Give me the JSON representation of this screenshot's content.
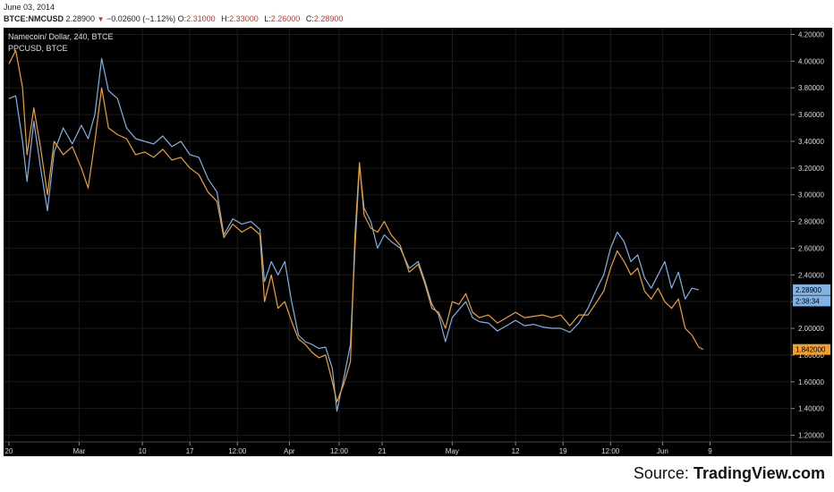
{
  "header": {
    "date": "June 03, 2014",
    "symbol": "BTCE:NMCUSD",
    "last": "2.28900",
    "change": "−0.02600 (−1.12%)",
    "open_label": "O:",
    "open": "2.31000",
    "high_label": "H:",
    "high": "2.33000",
    "low_label": "L:",
    "low": "2.26000",
    "close_label": "C:",
    "close": "2.28900"
  },
  "source": {
    "label": "Source:",
    "brand": "TradingView.com"
  },
  "colors": {
    "background": "#000000",
    "nmc": "#7fb2e5",
    "ppc": "#f0a030",
    "axis": "#d8d8d8",
    "grid": "#1a1a1a"
  },
  "chart_data": {
    "type": "line",
    "legend": [
      "Namecoin/ Dollar, 240, BTCE",
      "PPCUSD, BTCE"
    ],
    "x_ticks": [
      "20",
      "Mar",
      "10",
      "17",
      "12:00",
      "Apr",
      "12:00",
      "21",
      "May",
      "12",
      "19",
      "12:00",
      "Jun",
      "9"
    ],
    "x_tick_index": [
      0,
      31,
      59,
      80,
      101,
      124,
      146,
      165,
      196,
      224,
      245,
      266,
      289,
      310
    ],
    "y_ticks": [
      "4.20000",
      "4.00000",
      "3.80000",
      "3.60000",
      "3.40000",
      "3.20000",
      "3.00000",
      "2.80000",
      "2.60000",
      "2.40000",
      "2.20000",
      "2.00000",
      "1.80000",
      "1.60000",
      "1.40000",
      "1.20000"
    ],
    "ylim": [
      1.15,
      4.25
    ],
    "x_max": 330,
    "price_tags": [
      {
        "series": 0,
        "text": "2.28900",
        "value": 2.289
      },
      {
        "series": 0,
        "text": "2:38:34",
        "value": 2.205
      },
      {
        "series": 1,
        "text": "1.842000",
        "value": 1.842
      }
    ],
    "series": [
      {
        "name": "Namecoin/ Dollar, 240, BTCE",
        "points": [
          [
            0,
            3.72
          ],
          [
            3,
            3.74
          ],
          [
            6,
            3.4
          ],
          [
            8,
            3.1
          ],
          [
            11,
            3.55
          ],
          [
            14,
            3.2
          ],
          [
            17,
            2.88
          ],
          [
            20,
            3.32
          ],
          [
            24,
            3.5
          ],
          [
            28,
            3.38
          ],
          [
            32,
            3.52
          ],
          [
            35,
            3.42
          ],
          [
            38,
            3.6
          ],
          [
            41,
            4.02
          ],
          [
            44,
            3.78
          ],
          [
            48,
            3.72
          ],
          [
            52,
            3.5
          ],
          [
            56,
            3.42
          ],
          [
            60,
            3.4
          ],
          [
            64,
            3.38
          ],
          [
            68,
            3.44
          ],
          [
            72,
            3.36
          ],
          [
            76,
            3.4
          ],
          [
            80,
            3.3
          ],
          [
            84,
            3.28
          ],
          [
            88,
            3.12
          ],
          [
            92,
            3.02
          ],
          [
            95,
            2.7
          ],
          [
            99,
            2.82
          ],
          [
            103,
            2.78
          ],
          [
            107,
            2.8
          ],
          [
            111,
            2.74
          ],
          [
            113,
            2.35
          ],
          [
            116,
            2.5
          ],
          [
            119,
            2.4
          ],
          [
            122,
            2.5
          ],
          [
            125,
            2.2
          ],
          [
            128,
            1.95
          ],
          [
            131,
            1.9
          ],
          [
            134,
            1.88
          ],
          [
            137,
            1.85
          ],
          [
            140,
            1.86
          ],
          [
            143,
            1.7
          ],
          [
            145,
            1.38
          ],
          [
            148,
            1.62
          ],
          [
            151,
            1.88
          ],
          [
            153,
            2.6
          ],
          [
            155,
            3.22
          ],
          [
            157,
            2.9
          ],
          [
            160,
            2.8
          ],
          [
            163,
            2.6
          ],
          [
            166,
            2.7
          ],
          [
            169,
            2.65
          ],
          [
            173,
            2.6
          ],
          [
            177,
            2.45
          ],
          [
            181,
            2.5
          ],
          [
            184,
            2.35
          ],
          [
            187,
            2.18
          ],
          [
            190,
            2.1
          ],
          [
            193,
            1.9
          ],
          [
            196,
            2.08
          ],
          [
            199,
            2.14
          ],
          [
            202,
            2.2
          ],
          [
            205,
            2.08
          ],
          [
            208,
            2.05
          ],
          [
            212,
            2.04
          ],
          [
            216,
            1.98
          ],
          [
            220,
            2.02
          ],
          [
            224,
            2.06
          ],
          [
            228,
            2.02
          ],
          [
            232,
            2.03
          ],
          [
            236,
            2.01
          ],
          [
            240,
            2.0
          ],
          [
            244,
            2.0
          ],
          [
            248,
            1.97
          ],
          [
            252,
            2.04
          ],
          [
            256,
            2.15
          ],
          [
            260,
            2.3
          ],
          [
            263,
            2.4
          ],
          [
            266,
            2.6
          ],
          [
            269,
            2.72
          ],
          [
            272,
            2.65
          ],
          [
            275,
            2.5
          ],
          [
            278,
            2.55
          ],
          [
            281,
            2.38
          ],
          [
            284,
            2.3
          ],
          [
            287,
            2.4
          ],
          [
            290,
            2.5
          ],
          [
            293,
            2.3
          ],
          [
            296,
            2.42
          ],
          [
            299,
            2.22
          ],
          [
            302,
            2.3
          ],
          [
            305,
            2.289
          ]
        ]
      },
      {
        "name": "PPCUSD, BTCE",
        "points": [
          [
            0,
            3.98
          ],
          [
            3,
            4.08
          ],
          [
            6,
            3.8
          ],
          [
            8,
            3.3
          ],
          [
            11,
            3.65
          ],
          [
            14,
            3.35
          ],
          [
            17,
            3.0
          ],
          [
            20,
            3.4
          ],
          [
            24,
            3.3
          ],
          [
            28,
            3.36
          ],
          [
            32,
            3.2
          ],
          [
            35,
            3.05
          ],
          [
            38,
            3.4
          ],
          [
            41,
            3.8
          ],
          [
            44,
            3.5
          ],
          [
            48,
            3.45
          ],
          [
            52,
            3.42
          ],
          [
            56,
            3.3
          ],
          [
            60,
            3.32
          ],
          [
            64,
            3.28
          ],
          [
            68,
            3.34
          ],
          [
            72,
            3.26
          ],
          [
            76,
            3.28
          ],
          [
            80,
            3.2
          ],
          [
            84,
            3.15
          ],
          [
            88,
            3.02
          ],
          [
            92,
            2.95
          ],
          [
            95,
            2.68
          ],
          [
            99,
            2.78
          ],
          [
            103,
            2.72
          ],
          [
            107,
            2.76
          ],
          [
            111,
            2.7
          ],
          [
            113,
            2.2
          ],
          [
            116,
            2.4
          ],
          [
            119,
            2.15
          ],
          [
            122,
            2.2
          ],
          [
            125,
            2.05
          ],
          [
            128,
            1.92
          ],
          [
            131,
            1.88
          ],
          [
            134,
            1.82
          ],
          [
            137,
            1.78
          ],
          [
            140,
            1.8
          ],
          [
            143,
            1.6
          ],
          [
            145,
            1.45
          ],
          [
            148,
            1.58
          ],
          [
            151,
            1.75
          ],
          [
            153,
            2.7
          ],
          [
            155,
            3.24
          ],
          [
            157,
            2.85
          ],
          [
            160,
            2.75
          ],
          [
            163,
            2.72
          ],
          [
            166,
            2.8
          ],
          [
            169,
            2.7
          ],
          [
            173,
            2.62
          ],
          [
            177,
            2.42
          ],
          [
            181,
            2.48
          ],
          [
            184,
            2.33
          ],
          [
            187,
            2.15
          ],
          [
            190,
            2.12
          ],
          [
            193,
            2.0
          ],
          [
            196,
            2.2
          ],
          [
            199,
            2.18
          ],
          [
            202,
            2.26
          ],
          [
            205,
            2.12
          ],
          [
            208,
            2.08
          ],
          [
            212,
            2.1
          ],
          [
            216,
            2.04
          ],
          [
            220,
            2.08
          ],
          [
            224,
            2.12
          ],
          [
            228,
            2.08
          ],
          [
            232,
            2.09
          ],
          [
            236,
            2.1
          ],
          [
            240,
            2.08
          ],
          [
            244,
            2.1
          ],
          [
            248,
            2.02
          ],
          [
            252,
            2.1
          ],
          [
            256,
            2.1
          ],
          [
            260,
            2.2
          ],
          [
            263,
            2.28
          ],
          [
            266,
            2.45
          ],
          [
            269,
            2.58
          ],
          [
            272,
            2.5
          ],
          [
            275,
            2.4
          ],
          [
            278,
            2.45
          ],
          [
            281,
            2.28
          ],
          [
            284,
            2.22
          ],
          [
            287,
            2.3
          ],
          [
            290,
            2.2
          ],
          [
            293,
            2.15
          ],
          [
            296,
            2.22
          ],
          [
            299,
            2.0
          ],
          [
            302,
            1.95
          ],
          [
            305,
            1.86
          ],
          [
            307,
            1.842
          ]
        ]
      }
    ]
  }
}
